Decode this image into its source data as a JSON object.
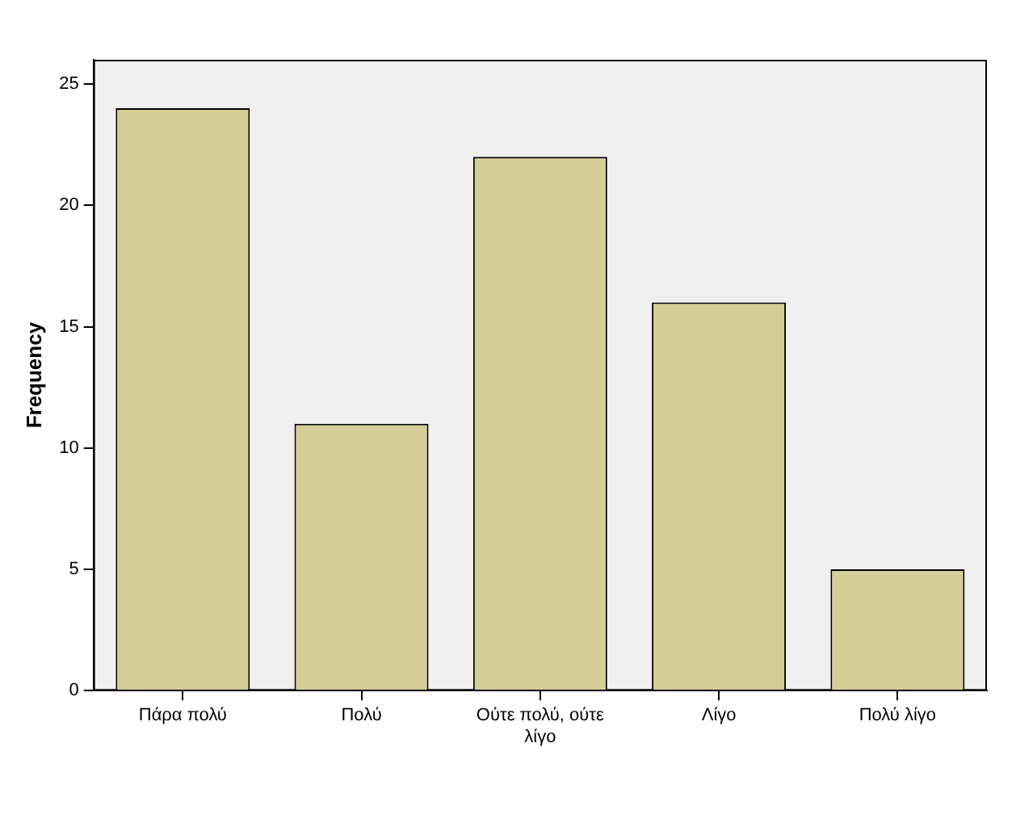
{
  "chart_data": {
    "type": "bar",
    "ylabel": "Frequency",
    "categories": [
      "Πάρα πολύ",
      "Πολύ",
      "Ούτε πολύ, ούτε λίγο",
      "Λίγο",
      "Πολύ λίγο"
    ],
    "values": [
      24,
      11,
      22,
      16,
      5
    ],
    "color": "#d3ce97",
    "ylim": [
      0,
      26
    ],
    "yticks": [
      0,
      5,
      10,
      15,
      20,
      25
    ],
    "grid": false,
    "legend": false
  }
}
